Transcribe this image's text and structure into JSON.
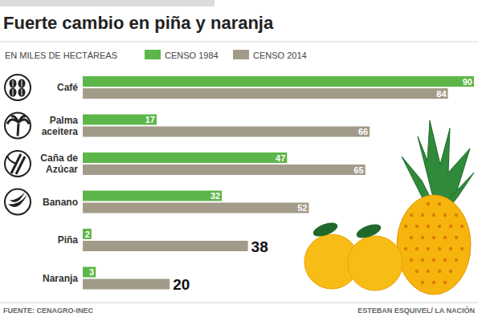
{
  "chart_data": {
    "type": "bar",
    "orientation": "horizontal",
    "title": "Fuerte cambio en piña y naranja",
    "subtitle": "EN MILES DE HECTÁREAS",
    "categories": [
      "Café",
      "Palma aceitera",
      "Caña de Azúcar",
      "Banano",
      "Piña",
      "Naranja"
    ],
    "series": [
      {
        "name": "CENSO 1984",
        "color": "#5db649",
        "values": [
          90,
          17,
          47,
          32,
          2,
          3
        ]
      },
      {
        "name": "CENSO 2014",
        "color": "#a39b89",
        "values": [
          84,
          66,
          65,
          52,
          38,
          20
        ]
      }
    ],
    "xlim": [
      0,
      90
    ],
    "tick_labels": false,
    "grid": false,
    "data_labels": true,
    "annotations": [
      "FUENTE: CENAGRO-INEC",
      "ESTEBAN ESQUIVEL/ LA NACIÓN"
    ]
  }
}
